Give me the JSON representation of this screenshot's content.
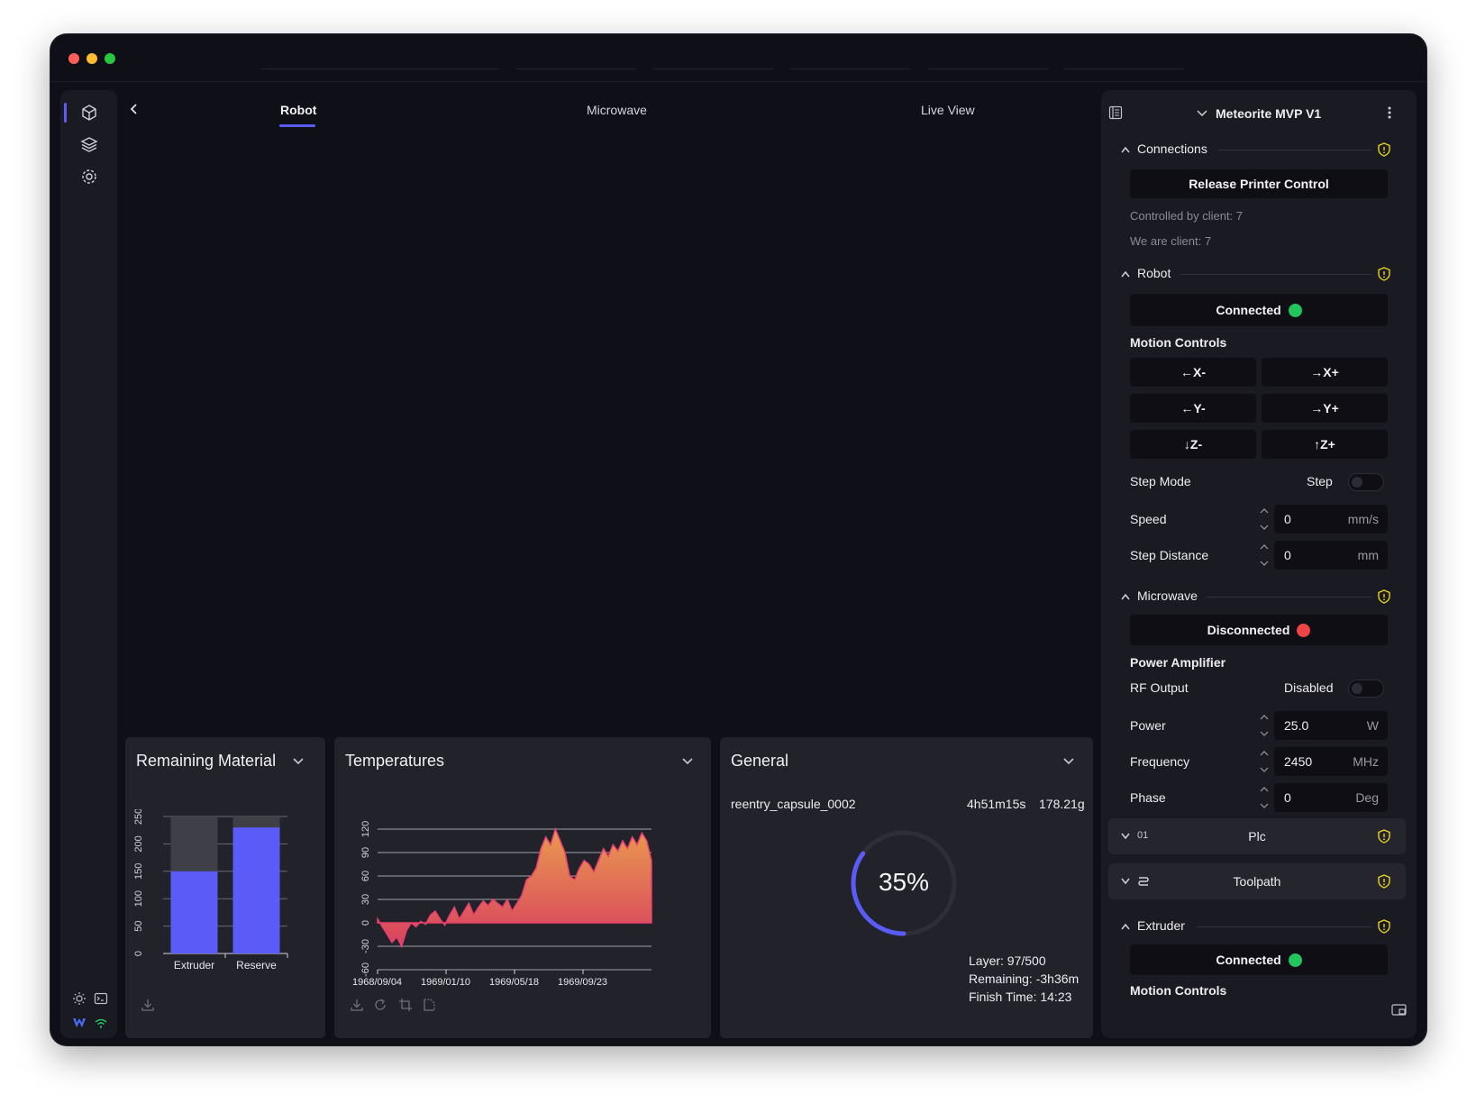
{
  "tabs": [
    {
      "label": "Robot",
      "active": true
    },
    {
      "label": "Microwave",
      "active": false
    },
    {
      "label": "Live View",
      "active": false
    }
  ],
  "rail": {
    "top_icons": [
      "robot-icon",
      "layers-icon",
      "gear-icon"
    ],
    "bottom_icons": [
      "sun-icon",
      "terminal-icon",
      "logo-icon",
      "wifi-icon"
    ]
  },
  "panels": {
    "remaining": {
      "title": "Remaining Material"
    },
    "temperatures": {
      "title": "Temperatures"
    },
    "general": {
      "title": "General",
      "file": "reentry_capsule_0002",
      "duration": "4h51m15s",
      "weight": "178.21g",
      "progress_label": "35%",
      "progress": 0.35,
      "layer": "Layer: 97/500",
      "remaining": "Remaining: -3h36m",
      "finish": "Finish Time: 14:23"
    }
  },
  "chart_data": [
    {
      "type": "bar",
      "title": "",
      "categories": [
        "Extruder",
        "Reserve"
      ],
      "values": [
        150,
        230
      ],
      "capacity": [
        250,
        250
      ],
      "ylim": [
        0,
        250
      ],
      "yticks": [
        "0",
        "50",
        "100",
        "150",
        "200",
        "250"
      ],
      "colors": {
        "value": "#5b5bf7",
        "capacity": "#3f3f48"
      }
    },
    {
      "type": "area",
      "title": "",
      "xticks": [
        "1968/09/04",
        "1969/01/10",
        "1969/05/18",
        "1969/09/23"
      ],
      "yticks": [
        "-60",
        "-30",
        "0",
        "30",
        "60",
        "90",
        "120"
      ],
      "ylim": [
        -60,
        120
      ],
      "series": [
        {
          "values": [
            5,
            -5,
            -15,
            -25,
            -18,
            -30,
            -10,
            0,
            -5,
            2,
            -2,
            10,
            15,
            5,
            -3,
            10,
            20,
            5,
            15,
            25,
            10,
            20,
            28,
            22,
            30,
            25,
            20,
            30,
            15,
            25,
            35,
            55,
            60,
            70,
            95,
            110,
            100,
            120,
            105,
            90,
            60,
            55,
            70,
            80,
            75,
            65,
            80,
            95,
            85,
            100,
            92,
            105,
            95,
            110,
            100,
            115,
            105,
            80
          ],
          "color": "#e8406e"
        }
      ]
    }
  ],
  "sidebar": {
    "title": "Meteorite MVP V1",
    "connections": {
      "label": "Connections",
      "button": "Release Printer Control",
      "controlled_by": "Controlled by client: 7",
      "we_are": "We are client: 7"
    },
    "robot": {
      "label": "Robot",
      "status": "Connected",
      "status_color": "#22c55e",
      "motion_label": "Motion Controls",
      "motion": [
        {
          "label": "X-",
          "arrow": "←"
        },
        {
          "label": "X+",
          "arrow": "→"
        },
        {
          "label": "Y-",
          "arrow": "←"
        },
        {
          "label": "Y+",
          "arrow": "→"
        },
        {
          "label": "Z-",
          "arrow": "↓"
        },
        {
          "label": "Z+",
          "arrow": "↑"
        }
      ],
      "step_mode_label": "Step Mode",
      "step_mode_value": "Step",
      "speed_label": "Speed",
      "speed_value": "0",
      "speed_unit": "mm/s",
      "step_dist_label": "Step Distance",
      "step_dist_value": "0",
      "step_dist_unit": "mm"
    },
    "microwave": {
      "label": "Microwave",
      "status": "Disconnected",
      "status_color": "#ef4444",
      "pa_label": "Power Amplifier",
      "rf_label": "RF Output",
      "rf_value": "Disabled",
      "power_label": "Power",
      "power_value": "25.0",
      "power_unit": "W",
      "freq_label": "Frequency",
      "freq_value": "2450",
      "freq_unit": "MHz",
      "phase_label": "Phase",
      "phase_value": "0",
      "phase_unit": "Deg"
    },
    "plc": {
      "num": "01",
      "label": "Plc"
    },
    "toolpath": {
      "label": "Toolpath"
    },
    "extruder": {
      "label": "Extruder",
      "status": "Connected",
      "status_color": "#22c55e",
      "motion_label": "Motion Controls"
    }
  }
}
